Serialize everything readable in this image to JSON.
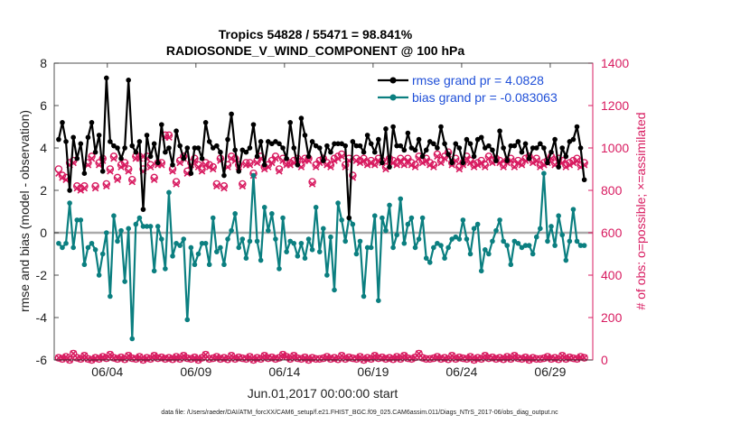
{
  "chart_data": {
    "type": "line",
    "title_line1": "Tropics 54828 / 55471 = 98.841%",
    "title_line2": "RADIOSONDE_V_WIND_COMPONENT @ 100 hPa",
    "xlabel": "Jun.01,2017 00:00:00 start",
    "ylabel_left": "rmse and bias (model - observation)",
    "ylabel_right": "# of obs: o=possible; ×=assimilated",
    "footer": "data file: /Users/raeder/DAI/ATM_forcXX/CAM6_setup/f.e21.FHIST_BGC.f09_025.CAM6assim.011/Diags_NTrS_2017-06/obs_diag_output.nc",
    "x_range": [
      0.0,
      30.4
    ],
    "ylim_left": [
      -6,
      8
    ],
    "ylim_right": [
      0,
      1400
    ],
    "x_tick_values": [
      3,
      8,
      13,
      18,
      23,
      28
    ],
    "x_tick_labels": [
      "06/04",
      "06/09",
      "06/14",
      "06/19",
      "06/24",
      "06/29"
    ],
    "y_left_ticks": [
      -6,
      -4,
      -2,
      0,
      2,
      4,
      6,
      8
    ],
    "y_left_tick_labels": [
      "-6",
      "-4",
      "-2",
      "0",
      "2",
      "4",
      "6",
      "8"
    ],
    "y_right_ticks": [
      0,
      200,
      400,
      600,
      800,
      1000,
      1200,
      1400
    ],
    "y_right_tick_labels": [
      "0",
      "200",
      "400",
      "600",
      "800",
      "1000",
      "1200",
      "1400"
    ],
    "legend": [
      {
        "label": "rmse grand pr = 4.0828",
        "color": "#000000"
      },
      {
        "label": "bias grand pr = -0.083063",
        "color": "#0b7f80"
      }
    ],
    "colors": {
      "rmse": "#000000",
      "bias": "#0b7f80",
      "obs": "#d81b60",
      "axis_right": "#d81b60",
      "legend_text": "#1f4fd8",
      "zero_line": "#aaaaaa"
    },
    "series": [
      {
        "name": "rmse",
        "axis": "left",
        "values": [
          4.4,
          5.2,
          4.3,
          2.0,
          4.5,
          3.5,
          4.2,
          2.8,
          4.5,
          5.2,
          3.8,
          4.6,
          2.9,
          7.3,
          4.3,
          4.1,
          4.0,
          3.5,
          4.0,
          7.2,
          4.1,
          3.8,
          4.3,
          1.1,
          4.6,
          3.6,
          4.2,
          3.3,
          5.1,
          3.8,
          4.0,
          3.2,
          4.8,
          4.1,
          3.5,
          4.0,
          2.8,
          4.0,
          4.0,
          3.5,
          5.2,
          4.3,
          4.0,
          4.1,
          3.8,
          2.7,
          4.4,
          5.6,
          3.9,
          2.9,
          3.9,
          3.8,
          4.0,
          5.1,
          3.6,
          4.3,
          3.2,
          4.3,
          4.2,
          4.3,
          4.2,
          4.0,
          3.5,
          5.2,
          4.0,
          3.2,
          5.4,
          4.6,
          3.6,
          4.3,
          4.1,
          4.0,
          3.4,
          4.1,
          3.8,
          4.2,
          4.2,
          4.2,
          4.1,
          0.7,
          4.3,
          4.1,
          4.1,
          3.8,
          4.6,
          4.2,
          3.8,
          4.4,
          3.3,
          4.9,
          3.1,
          5.0,
          4.1,
          4.1,
          3.9,
          4.7,
          4.0,
          3.9,
          4.4,
          3.6,
          3.9,
          4.3,
          4.2,
          4.0,
          5.0,
          4.2,
          3.7,
          3.3,
          4.2,
          4.0,
          3.3,
          4.4,
          4.2,
          3.6,
          4.4,
          4.5,
          4.0,
          4.1,
          3.9,
          3.4,
          4.8,
          4.0,
          3.4,
          4.1,
          4.1,
          4.3,
          3.8,
          4.2,
          3.5,
          4.0,
          4.0,
          4.2,
          4.0,
          3.3,
          3.8,
          4.4,
          3.1,
          4.0,
          3.6,
          4.3,
          4.4,
          5.0,
          4.0,
          2.5
        ]
      },
      {
        "name": "bias",
        "axis": "left",
        "values": [
          -0.5,
          -0.7,
          -0.5,
          1.4,
          -0.7,
          0.6,
          0.6,
          -1.5,
          -0.7,
          -0.5,
          -0.8,
          -2.0,
          -1.0,
          0.0,
          -3.0,
          0.8,
          -0.4,
          0.1,
          -2.3,
          0.2,
          -5.0,
          0.4,
          0.7,
          0.3,
          0.3,
          0.3,
          -1.8,
          0.3,
          -0.3,
          -1.7,
          1.9,
          -1.1,
          -0.5,
          -0.6,
          -0.3,
          -4.1,
          -0.7,
          -1.5,
          -1.0,
          -0.5,
          -0.5,
          -1.5,
          0.7,
          -0.9,
          -0.7,
          -1.5,
          -0.3,
          0.1,
          0.9,
          -0.7,
          -0.3,
          -1.2,
          -0.4,
          2.7,
          -0.4,
          -1.3,
          1.2,
          0.1,
          0.9,
          -0.3,
          -1.7,
          0.7,
          -0.9,
          -0.4,
          -0.5,
          -1.1,
          -0.5,
          -1.2,
          -0.3,
          -0.8,
          1.2,
          -0.9,
          0.2,
          -2.0,
          -0.2,
          -2.7,
          1.4,
          0.6,
          -0.4,
          0.7,
          0.4,
          -1.0,
          -0.4,
          -3.0,
          -0.7,
          -0.7,
          0.8,
          -3.2,
          0.7,
          0.1,
          1.3,
          -0.7,
          -0.1,
          1.6,
          -0.5,
          0.4,
          0.7,
          -0.7,
          -0.3,
          0.7,
          -1.2,
          -1.4,
          -0.7,
          -0.5,
          -0.6,
          -1.2,
          -0.7,
          -0.3,
          -0.2,
          -0.3,
          0.6,
          -0.3,
          -1.0,
          0.2,
          0.4,
          -1.8,
          -0.8,
          -1.0,
          -0.4,
          0.1,
          0.6,
          -0.4,
          -0.6,
          -1.5,
          -0.4,
          -0.5,
          -0.7,
          -0.6,
          -0.6,
          -1.0,
          -0.2,
          0.2,
          2.8,
          -0.4,
          0.3,
          -0.6,
          0.8,
          -0.1,
          -1.3,
          -0.4,
          1.1,
          -0.4,
          -0.6,
          -0.6
        ]
      },
      {
        "name": "obs_possible",
        "axis": "right",
        "values": [
          900,
          870,
          860,
          930,
          940,
          820,
          810,
          820,
          930,
          960,
          820,
          930,
          950,
          830,
          900,
          960,
          860,
          920,
          930,
          900,
          850,
          960,
          960,
          900,
          960,
          920,
          860,
          930,
          930,
          1060,
          1060,
          900,
          840,
          940,
          960,
          890,
          930,
          950,
          920,
          900,
          930,
          920,
          910,
          830,
          950,
          820,
          920,
          960,
          950,
          920,
          830,
          930,
          930,
          880,
          940,
          960,
          910,
          920,
          940,
          960,
          900,
          950,
          930,
          930,
          940,
          950,
          920,
          950,
          950,
          840,
          920,
          940,
          950,
          930,
          920,
          950,
          960,
          970,
          920,
          950,
          870,
          950,
          940,
          950,
          930,
          940,
          930,
          950,
          940,
          910,
          950,
          940,
          930,
          950,
          930,
          950,
          930,
          920,
          960,
          940,
          950,
          930,
          920,
          970,
          940,
          960,
          980,
          930,
          950,
          910,
          930,
          960,
          940,
          920,
          930,
          940,
          920,
          960,
          940,
          950,
          940,
          920,
          940,
          950,
          920,
          940,
          930,
          950,
          960,
          940,
          950,
          920,
          930,
          940,
          960,
          930,
          950,
          940,
          920,
          930,
          940,
          950,
          920,
          930
        ]
      },
      {
        "name": "obs_assimilated",
        "axis": "right",
        "values": [
          880,
          860,
          850,
          920,
          930,
          810,
          800,
          810,
          920,
          950,
          810,
          920,
          940,
          820,
          890,
          950,
          850,
          910,
          920,
          890,
          840,
          950,
          950,
          890,
          950,
          910,
          850,
          920,
          920,
          1050,
          1050,
          890,
          830,
          930,
          950,
          880,
          920,
          940,
          910,
          890,
          920,
          910,
          900,
          820,
          940,
          810,
          910,
          950,
          940,
          910,
          820,
          920,
          920,
          870,
          930,
          950,
          900,
          910,
          930,
          950,
          890,
          940,
          920,
          920,
          930,
          940,
          910,
          940,
          940,
          830,
          910,
          930,
          940,
          920,
          910,
          940,
          950,
          960,
          910,
          940,
          860,
          940,
          930,
          940,
          920,
          930,
          920,
          940,
          930,
          900,
          940,
          930,
          920,
          940,
          920,
          940,
          920,
          910,
          950,
          930,
          940,
          920,
          910,
          960,
          930,
          950,
          970,
          920,
          940,
          900,
          920,
          950,
          930,
          910,
          920,
          930,
          910,
          950,
          930,
          940,
          930,
          910,
          930,
          940,
          910,
          930,
          920,
          940,
          950,
          930,
          940,
          910,
          920,
          930,
          950,
          920,
          940,
          930,
          910,
          920,
          930,
          940,
          910,
          920
        ]
      },
      {
        "name": "obs_bottom_possible",
        "axis": "right",
        "values": [
          10,
          5,
          15,
          0,
          30,
          10,
          5,
          20,
          5,
          0,
          10,
          5,
          15,
          8,
          25,
          10,
          5,
          12,
          3,
          20,
          8,
          5,
          15,
          0,
          10,
          5,
          20,
          8,
          12,
          5,
          10,
          3,
          15,
          5,
          20,
          8,
          5,
          12,
          0,
          10,
          25,
          5,
          8,
          15,
          5,
          10,
          3,
          20,
          5,
          12,
          8,
          5,
          15,
          0,
          10,
          5,
          20,
          8,
          12,
          5,
          10,
          25,
          15,
          5,
          20,
          8,
          5,
          12,
          0,
          10,
          5,
          5,
          8,
          15,
          5,
          10,
          3,
          20,
          5,
          12,
          8,
          5,
          15,
          0,
          10,
          5,
          20,
          8,
          12,
          5,
          10,
          3,
          15,
          5,
          20,
          8,
          5,
          12,
          30,
          10,
          5,
          5,
          8,
          15,
          5,
          10,
          3,
          20,
          5,
          12,
          8,
          5,
          15,
          0,
          10,
          5,
          20,
          8,
          12,
          5,
          10,
          3,
          15,
          5,
          20,
          8,
          5,
          12,
          0,
          10,
          5,
          5,
          8,
          15,
          5,
          10,
          3,
          20,
          5,
          12,
          8,
          5,
          15,
          10
        ]
      }
    ]
  }
}
